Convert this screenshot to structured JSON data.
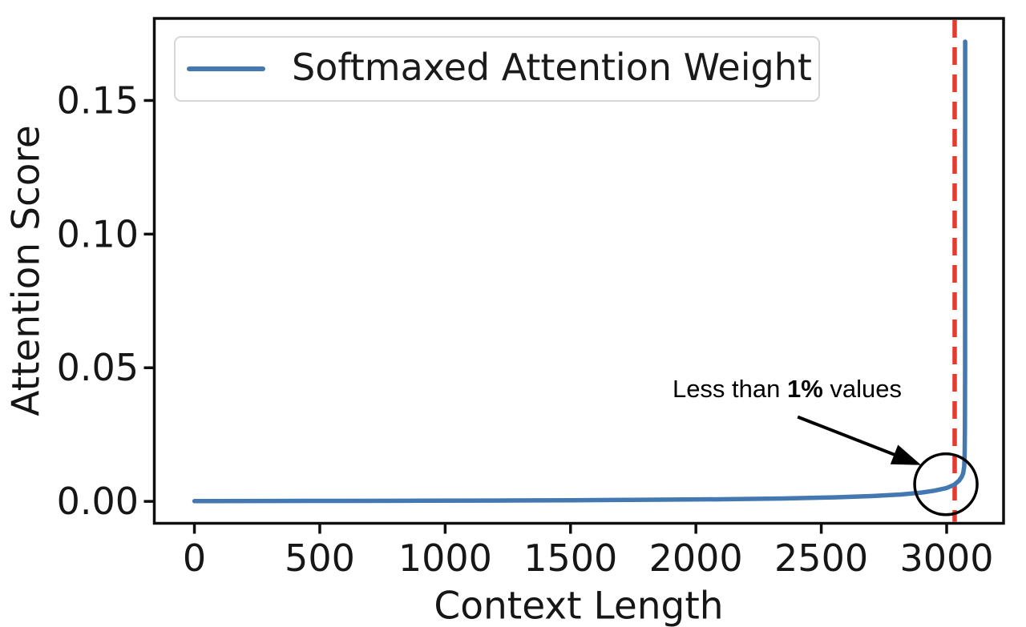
{
  "chart_data": {
    "type": "line",
    "title": "",
    "xlabel": "Context Length",
    "ylabel": "Attention Score",
    "xlim": [
      -160,
      3227
    ],
    "ylim": [
      -0.0082,
      0.1807
    ],
    "grid": false,
    "xticks": {
      "values": [
        0,
        500,
        1000,
        1500,
        2000,
        2500,
        3000
      ],
      "labels": [
        "0",
        "500",
        "1000",
        "1500",
        "2000",
        "2500",
        "3000"
      ]
    },
    "yticks": {
      "values": [
        0,
        0.05,
        0.1,
        0.15
      ],
      "labels": [
        "0.00",
        "0.05",
        "0.10",
        "0.15"
      ]
    },
    "legend": {
      "location": "upper left",
      "entries": [
        {
          "label": "Softmaxed Attention Weight",
          "color": "#4478b0"
        }
      ]
    },
    "series": [
      {
        "name": "Softmaxed Attention Weight",
        "color": "#4478b0",
        "line_width": 5.5,
        "points": [
          [
            0,
            0.0001
          ],
          [
            300,
            0.00015
          ],
          [
            600,
            0.0002
          ],
          [
            900,
            0.00025
          ],
          [
            1200,
            0.0003
          ],
          [
            1500,
            0.0004
          ],
          [
            1800,
            0.0006
          ],
          [
            2100,
            0.0008
          ],
          [
            2350,
            0.0011
          ],
          [
            2550,
            0.0015
          ],
          [
            2700,
            0.002
          ],
          [
            2820,
            0.0026
          ],
          [
            2900,
            0.0033
          ],
          [
            2950,
            0.004
          ],
          [
            3000,
            0.005
          ],
          [
            3030,
            0.0062
          ],
          [
            3050,
            0.0078
          ],
          [
            3060,
            0.0092
          ],
          [
            3066,
            0.0105
          ],
          [
            3070,
            0.013
          ],
          [
            3072,
            0.018
          ],
          [
            3073,
            0.028
          ],
          [
            3073.5,
            0.05
          ],
          [
            3074,
            0.172
          ]
        ]
      }
    ],
    "vline": {
      "x": 3032,
      "color": "#e8392e",
      "dash": [
        22,
        12
      ],
      "line_width": 5.5
    },
    "annotation": {
      "text_prefix": "Less than ",
      "text_bold": "1%",
      "text_suffix": " values",
      "text_center": [
        2364,
        0.0421
      ],
      "arrow_from": [
        2406,
        0.0316
      ],
      "arrow_to": [
        2898,
        0.0136
      ],
      "ellipse_center": [
        2997,
        0.0064
      ],
      "ellipse_radius_px": [
        39,
        38
      ]
    }
  },
  "colors": {
    "axis": "#0e0e0e",
    "tick_text": "#161616",
    "annotation": "#000000",
    "legend_border": "#d7d7d7"
  }
}
